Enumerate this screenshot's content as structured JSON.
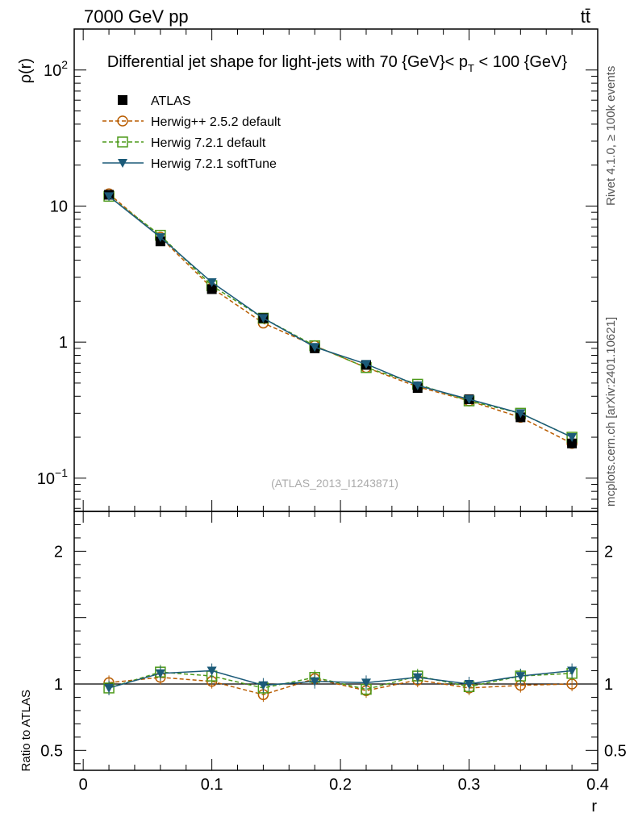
{
  "header": {
    "energy_label": "7000 GeV pp",
    "process_label": "tt̄"
  },
  "side_text": {
    "rivet": "Rivet 4.1.0, ≥ 100k events",
    "source": "mcplots.cern.ch [arXiv:2401.10621]"
  },
  "chart_data": {
    "type": "line",
    "title": "Differential jet shape for light-jets with 70 {GeV}< p_T < 100 {GeV}",
    "title_parts": {
      "main": "Differential jet shape for light-jets with 70 {GeV}< p",
      "sub": "T",
      "tail": " < 100 {GeV}"
    },
    "reference_label": "(ATLAS_2013_I1243871)",
    "xlabel": "r",
    "ylabel": "ρ(r)",
    "ratio_ylabel": "Ratio to ATLAS",
    "xlim": [
      -0.007,
      0.4
    ],
    "ylim_log": [
      0.057,
      200
    ],
    "ratio_ylim": [
      0.35,
      2.3
    ],
    "x_ticks": [
      "0",
      "0.1",
      "0.2",
      "0.3",
      "0.4"
    ],
    "y_ticks": [
      {
        "value": 0.1,
        "base": "10",
        "exp": "−1"
      },
      {
        "value": 1,
        "base": "1",
        "exp": ""
      },
      {
        "value": 10,
        "base": "10",
        "exp": ""
      },
      {
        "value": 100,
        "base": "10",
        "exp": "2"
      }
    ],
    "ratio_ticks": [
      "0.5",
      "1",
      "2"
    ],
    "x": [
      0.02,
      0.06,
      0.1,
      0.14,
      0.18,
      0.22,
      0.26,
      0.3,
      0.34,
      0.38
    ],
    "series": [
      {
        "name": "ATLAS",
        "color": "#000000",
        "marker": "square-filled",
        "line": "none",
        "values": [
          12.1,
          5.5,
          2.45,
          1.5,
          0.9,
          0.68,
          0.46,
          0.38,
          0.28,
          0.18
        ],
        "ratio": [
          1.0,
          1.0,
          1.0,
          1.0,
          1.0,
          1.0,
          1.0,
          1.0,
          1.0,
          1.0
        ]
      },
      {
        "name": "Herwig++ 2.5.2 default",
        "color": "#b85c00",
        "marker": "circle-open",
        "line": "dashed",
        "values": [
          12.3,
          5.9,
          2.5,
          1.38,
          0.94,
          0.65,
          0.47,
          0.37,
          0.28,
          0.18
        ],
        "ratio": [
          1.01,
          1.05,
          1.02,
          0.92,
          1.04,
          0.95,
          1.03,
          0.97,
          0.99,
          1.0
        ]
      },
      {
        "name": "Herwig 7.2.1 default",
        "color": "#4d9a1a",
        "marker": "square-open",
        "line": "dashed",
        "values": [
          11.8,
          6.1,
          2.6,
          1.5,
          0.94,
          0.65,
          0.49,
          0.37,
          0.3,
          0.2
        ],
        "ratio": [
          0.97,
          1.09,
          1.06,
          0.97,
          1.05,
          0.96,
          1.06,
          0.98,
          1.06,
          1.08
        ]
      },
      {
        "name": "Herwig 7.2.1 softTune",
        "color": "#1b5a78",
        "marker": "triangle-down",
        "line": "solid",
        "values": [
          11.8,
          5.9,
          2.75,
          1.5,
          0.92,
          0.69,
          0.48,
          0.38,
          0.3,
          0.2
        ],
        "ratio": [
          0.97,
          1.08,
          1.1,
          0.99,
          1.02,
          1.01,
          1.05,
          1.0,
          1.06,
          1.1
        ]
      }
    ]
  }
}
